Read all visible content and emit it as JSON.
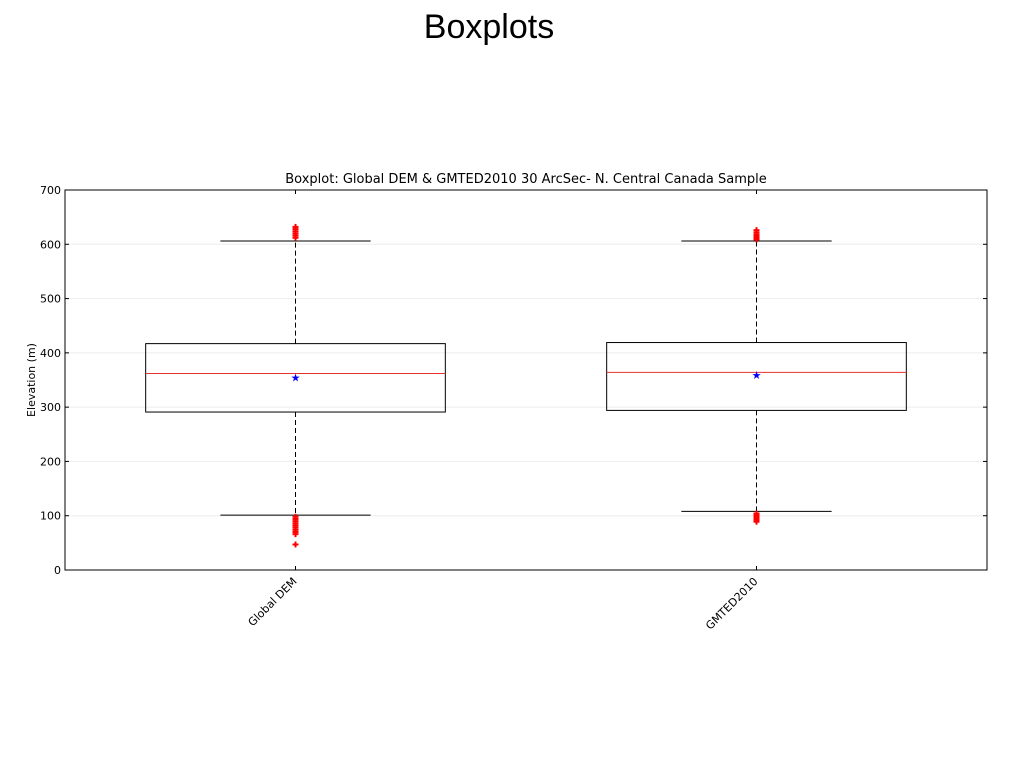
{
  "slide": {
    "title": "Boxplots"
  },
  "chart_data": {
    "type": "box",
    "title": "Boxplot: Global DEM & GMTED2010 30 ArcSec- N. Central Canada Sample",
    "xlabel": "",
    "ylabel": "Elevation (m)",
    "ylim": [
      0,
      700
    ],
    "yticks": [
      0,
      100,
      200,
      300,
      400,
      500,
      600,
      700
    ],
    "grid": true,
    "categories": [
      "Global DEM",
      "GMTED2010"
    ],
    "boxes": [
      {
        "whisker_low": 101,
        "q1": 291,
        "median": 362,
        "q3": 417,
        "whisker_high": 606,
        "mean": 355,
        "outliers": [
          47,
          66,
          70,
          74,
          78,
          82,
          86,
          90,
          94,
          98,
          612,
          616,
          620,
          624,
          628,
          632
        ]
      },
      {
        "whisker_low": 108,
        "q1": 294,
        "median": 364,
        "q3": 419,
        "whisker_high": 606,
        "mean": 359,
        "outliers": [
          89,
          92,
          95,
          98,
          101,
          104,
          609,
          612,
          615,
          618,
          622,
          626
        ]
      }
    ],
    "colors": {
      "box": "#000000",
      "median": "#e8322b",
      "mean": "#0000ff",
      "outlier": "#ff0000",
      "grid": "#eeeeee"
    }
  }
}
